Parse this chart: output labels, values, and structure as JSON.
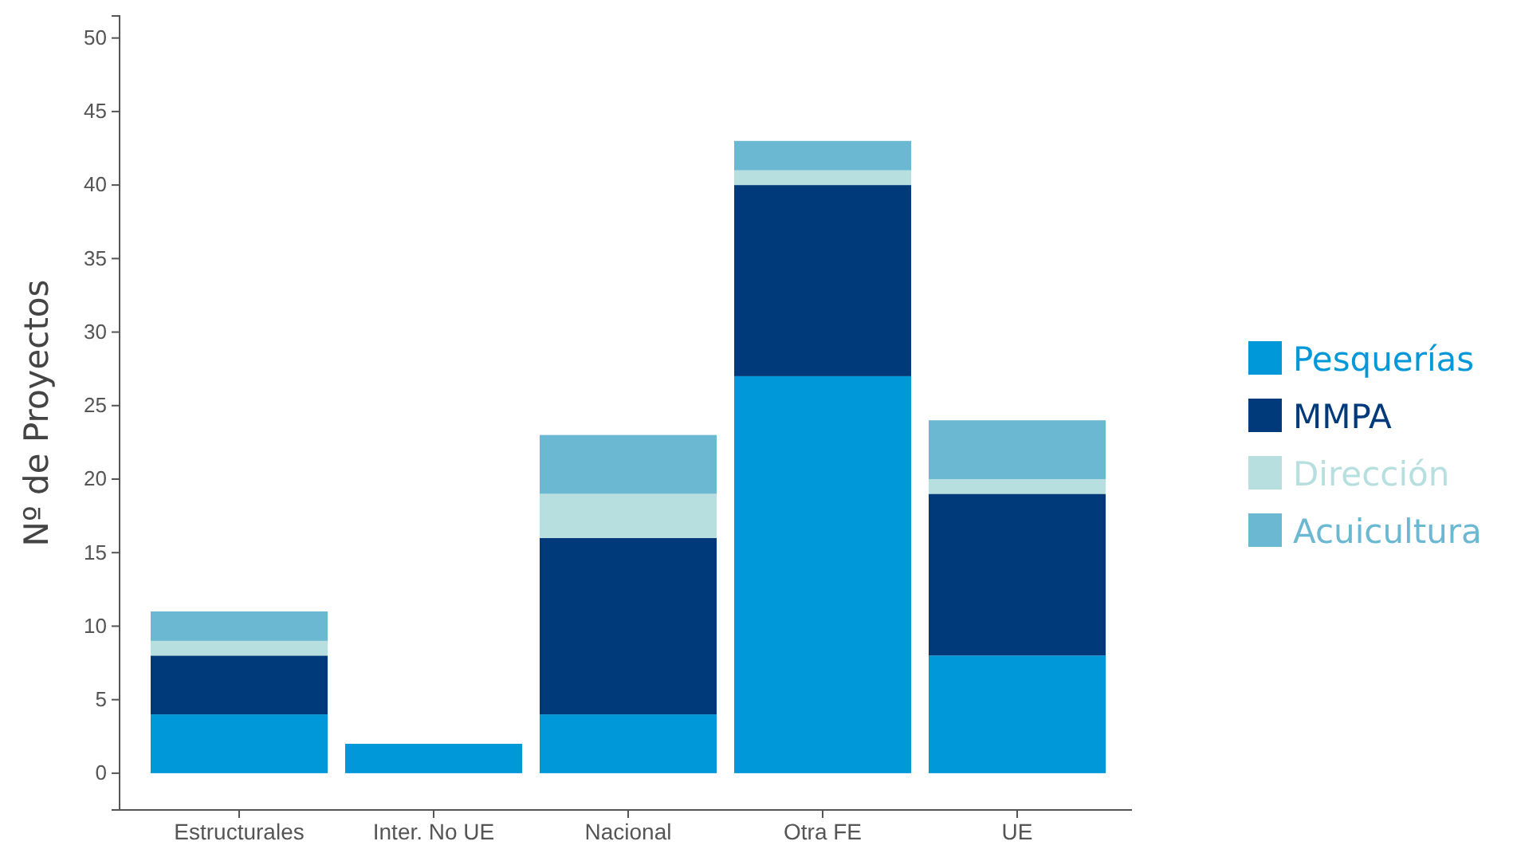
{
  "chart_data": {
    "type": "bar",
    "stacked": true,
    "ylabel": "Nº de Proyectos",
    "categories": [
      "Estructurales",
      "Inter. No UE",
      "Nacional",
      "Otra FE",
      "UE"
    ],
    "series": [
      {
        "name": "Pesquerías",
        "color": "#0098d8",
        "values": [
          4,
          2,
          4,
          27,
          8
        ]
      },
      {
        "name": "MMPA",
        "color": "#003a7a",
        "values": [
          4,
          0,
          12,
          13,
          11
        ]
      },
      {
        "name": "Dirección",
        "color": "#b8dfdf",
        "values": [
          1,
          0,
          3,
          1,
          1
        ]
      },
      {
        "name": "Acuicultura",
        "color": "#6ab8d2",
        "values": [
          2,
          0,
          4,
          2,
          4
        ]
      }
    ],
    "ylim": [
      -2.5,
      51.5
    ],
    "yticks": [
      0,
      5,
      10,
      15,
      20,
      25,
      30,
      35,
      40,
      45,
      50
    ],
    "grid": false,
    "legend": "right"
  }
}
